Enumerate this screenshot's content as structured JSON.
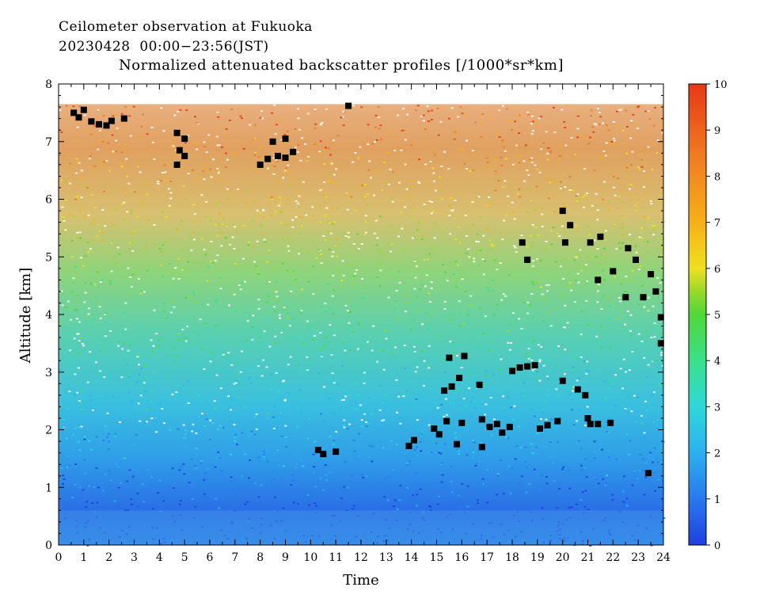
{
  "header": {
    "line1": "Ceilometer observation at Fukuoka",
    "line2": "20230428  00:00−23:56(JST)",
    "subtitle": "Normalized attenuated backscatter profiles [/1000*sr*km]"
  },
  "chart_data": {
    "type": "heatmap",
    "title": "Normalized attenuated backscatter profiles [/1000*sr*km]",
    "xlabel": "Time",
    "ylabel": "Altitude [km]",
    "xlim": [
      0,
      24
    ],
    "ylim": [
      0,
      8
    ],
    "x_ticks": [
      "0",
      "1",
      "2",
      "3",
      "4",
      "5",
      "6",
      "7",
      "8",
      "9",
      "10",
      "11",
      "12",
      "13",
      "14",
      "15",
      "16",
      "17",
      "18",
      "19",
      "20",
      "21",
      "22",
      "23",
      "24"
    ],
    "y_ticks": [
      "0",
      "1",
      "2",
      "3",
      "4",
      "5",
      "6",
      "7",
      "8"
    ],
    "colorbar": {
      "range": [
        0,
        10
      ],
      "ticks": [
        "0",
        "1",
        "2",
        "3",
        "4",
        "5",
        "6",
        "7",
        "8",
        "9",
        "10"
      ],
      "colors": [
        "#1f3fe0",
        "#2a78ee",
        "#2bb0f0",
        "#2fd8d8",
        "#3ae08a",
        "#4fd838",
        "#9ad82a",
        "#f0e020",
        "#f6b018",
        "#f07820",
        "#e83818"
      ]
    },
    "cloud_points": [
      {
        "t": 0.6,
        "h": 7.5
      },
      {
        "t": 0.8,
        "h": 7.42
      },
      {
        "t": 1.0,
        "h": 7.55
      },
      {
        "t": 1.3,
        "h": 7.35
      },
      {
        "t": 1.6,
        "h": 7.3
      },
      {
        "t": 1.9,
        "h": 7.28
      },
      {
        "t": 2.1,
        "h": 7.36
      },
      {
        "t": 2.6,
        "h": 7.4
      },
      {
        "t": 4.7,
        "h": 7.15
      },
      {
        "t": 4.8,
        "h": 6.85
      },
      {
        "t": 5.0,
        "h": 7.05
      },
      {
        "t": 5.0,
        "h": 6.75
      },
      {
        "t": 4.7,
        "h": 6.6
      },
      {
        "t": 8.0,
        "h": 6.6
      },
      {
        "t": 8.3,
        "h": 6.7
      },
      {
        "t": 8.5,
        "h": 7.0
      },
      {
        "t": 8.7,
        "h": 6.75
      },
      {
        "t": 9.0,
        "h": 6.72
      },
      {
        "t": 9.3,
        "h": 6.82
      },
      {
        "t": 9.0,
        "h": 7.05
      },
      {
        "t": 11.5,
        "h": 7.62
      },
      {
        "t": 10.3,
        "h": 1.65
      },
      {
        "t": 10.5,
        "h": 1.58
      },
      {
        "t": 11.0,
        "h": 1.62
      },
      {
        "t": 13.9,
        "h": 1.72
      },
      {
        "t": 14.1,
        "h": 1.82
      },
      {
        "t": 14.9,
        "h": 2.02
      },
      {
        "t": 15.1,
        "h": 1.92
      },
      {
        "t": 15.4,
        "h": 2.15
      },
      {
        "t": 15.5,
        "h": 3.25
      },
      {
        "t": 15.3,
        "h": 2.68
      },
      {
        "t": 15.6,
        "h": 2.75
      },
      {
        "t": 15.9,
        "h": 2.9
      },
      {
        "t": 16.1,
        "h": 3.28
      },
      {
        "t": 15.8,
        "h": 1.75
      },
      {
        "t": 16.0,
        "h": 2.12
      },
      {
        "t": 16.7,
        "h": 2.78
      },
      {
        "t": 16.8,
        "h": 2.18
      },
      {
        "t": 16.8,
        "h": 1.7
      },
      {
        "t": 17.1,
        "h": 2.05
      },
      {
        "t": 17.4,
        "h": 2.1
      },
      {
        "t": 17.6,
        "h": 1.95
      },
      {
        "t": 17.9,
        "h": 2.05
      },
      {
        "t": 18.0,
        "h": 3.02
      },
      {
        "t": 18.3,
        "h": 3.08
      },
      {
        "t": 18.6,
        "h": 3.1
      },
      {
        "t": 18.9,
        "h": 3.12
      },
      {
        "t": 18.4,
        "h": 5.25
      },
      {
        "t": 18.6,
        "h": 4.95
      },
      {
        "t": 19.1,
        "h": 2.02
      },
      {
        "t": 19.4,
        "h": 2.08
      },
      {
        "t": 19.8,
        "h": 2.15
      },
      {
        "t": 20.0,
        "h": 2.85
      },
      {
        "t": 20.0,
        "h": 5.8
      },
      {
        "t": 20.3,
        "h": 5.55
      },
      {
        "t": 20.1,
        "h": 5.25
      },
      {
        "t": 20.6,
        "h": 2.7
      },
      {
        "t": 20.9,
        "h": 2.6
      },
      {
        "t": 21.0,
        "h": 2.2
      },
      {
        "t": 21.1,
        "h": 2.1
      },
      {
        "t": 21.4,
        "h": 2.1
      },
      {
        "t": 21.9,
        "h": 2.12
      },
      {
        "t": 21.1,
        "h": 5.25
      },
      {
        "t": 21.5,
        "h": 5.35
      },
      {
        "t": 21.4,
        "h": 4.6
      },
      {
        "t": 22.0,
        "h": 4.75
      },
      {
        "t": 22.5,
        "h": 4.3
      },
      {
        "t": 22.6,
        "h": 5.15
      },
      {
        "t": 22.9,
        "h": 4.95
      },
      {
        "t": 23.2,
        "h": 4.3
      },
      {
        "t": 23.5,
        "h": 4.7
      },
      {
        "t": 23.7,
        "h": 4.4
      },
      {
        "t": 23.9,
        "h": 3.95
      },
      {
        "t": 23.9,
        "h": 3.5
      },
      {
        "t": 23.4,
        "h": 1.25
      }
    ]
  }
}
